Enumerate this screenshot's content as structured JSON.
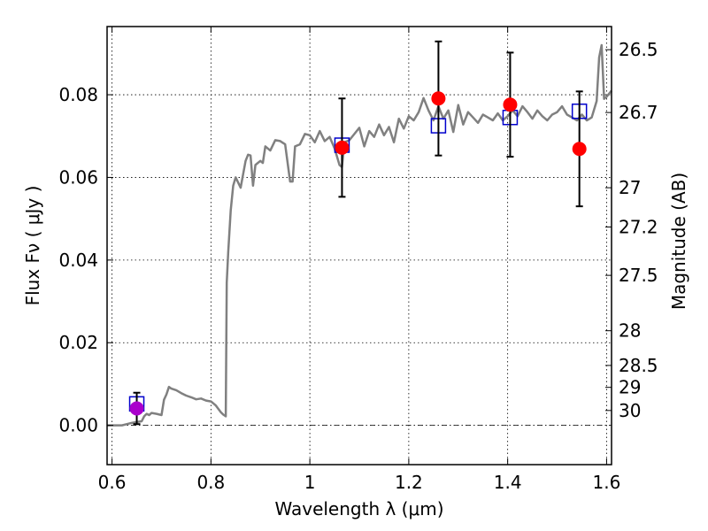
{
  "chart_data": {
    "type": "scatter",
    "xlabel": "Wavelength  λ (μm)",
    "ylabel_left": "Flux  Fν  ( μJy )",
    "ylabel_right": "Magnitude (AB)",
    "xlim": [
      0.59,
      1.61
    ],
    "ylim": [
      -0.0095,
      0.0965
    ],
    "x_ticks": [
      {
        "value": 0.6,
        "label": "0.6"
      },
      {
        "value": 0.8,
        "label": "0.8"
      },
      {
        "value": 1.0,
        "label": "1"
      },
      {
        "value": 1.2,
        "label": "1.2"
      },
      {
        "value": 1.4,
        "label": "1.4"
      },
      {
        "value": 1.6,
        "label": "1.6"
      }
    ],
    "y_ticks": [
      {
        "value": 0.0,
        "label": "0.00"
      },
      {
        "value": 0.02,
        "label": "0.02"
      },
      {
        "value": 0.04,
        "label": "0.04"
      },
      {
        "value": 0.06,
        "label": "0.06"
      },
      {
        "value": 0.08,
        "label": "0.08"
      }
    ],
    "magnitude_ticks": [
      {
        "flux": 0.0909,
        "label": "26.5"
      },
      {
        "flux": 0.0757,
        "label": "26.7"
      },
      {
        "flux": 0.0575,
        "label": "27"
      },
      {
        "flux": 0.048,
        "label": "27.2"
      },
      {
        "flux": 0.0363,
        "label": "27.5"
      },
      {
        "flux": 0.0229,
        "label": "28"
      },
      {
        "flux": 0.0145,
        "label": "28.5"
      },
      {
        "flux": 0.0092,
        "label": "29"
      },
      {
        "flux": 0.0036,
        "label": "30"
      }
    ],
    "grid": true,
    "zero_line": true,
    "series": [
      {
        "kind": "line",
        "color": "#808080",
        "x": [
          0.59,
          0.62,
          0.63,
          0.64,
          0.65,
          0.66,
          0.665,
          0.67,
          0.675,
          0.68,
          0.69,
          0.7,
          0.705,
          0.71,
          0.715,
          0.72,
          0.73,
          0.74,
          0.75,
          0.76,
          0.77,
          0.78,
          0.79,
          0.8,
          0.81,
          0.82,
          0.825,
          0.83,
          0.832,
          0.835,
          0.84,
          0.845,
          0.85,
          0.86,
          0.87,
          0.875,
          0.88,
          0.885,
          0.89,
          0.9,
          0.905,
          0.91,
          0.92,
          0.93,
          0.94,
          0.95,
          0.96,
          0.965,
          0.97,
          0.98,
          0.99,
          1.0,
          1.01,
          1.02,
          1.03,
          1.04,
          1.05,
          1.06,
          1.065,
          1.07,
          1.08,
          1.09,
          1.1,
          1.11,
          1.12,
          1.13,
          1.14,
          1.15,
          1.16,
          1.17,
          1.18,
          1.19,
          1.2,
          1.21,
          1.22,
          1.23,
          1.24,
          1.25,
          1.26,
          1.27,
          1.28,
          1.29,
          1.3,
          1.31,
          1.32,
          1.33,
          1.34,
          1.35,
          1.36,
          1.37,
          1.38,
          1.39,
          1.4,
          1.41,
          1.42,
          1.43,
          1.44,
          1.45,
          1.46,
          1.47,
          1.48,
          1.49,
          1.5,
          1.51,
          1.52,
          1.53,
          1.54,
          1.55,
          1.56,
          1.57,
          1.58,
          1.585,
          1.59,
          1.595,
          1.6,
          1.61
        ],
        "y": [
          0.0,
          0.0,
          0.0003,
          0.0006,
          0.0008,
          0.001,
          0.0022,
          0.0028,
          0.0025,
          0.003,
          0.0028,
          0.0025,
          0.0062,
          0.0075,
          0.0093,
          0.0089,
          0.0085,
          0.0078,
          0.0072,
          0.0068,
          0.0063,
          0.0065,
          0.006,
          0.0058,
          0.0048,
          0.0032,
          0.0026,
          0.0022,
          0.0345,
          0.042,
          0.052,
          0.058,
          0.06,
          0.0575,
          0.064,
          0.0655,
          0.0653,
          0.058,
          0.063,
          0.064,
          0.0635,
          0.0675,
          0.0665,
          0.069,
          0.0688,
          0.068,
          0.059,
          0.059,
          0.0675,
          0.068,
          0.0705,
          0.0702,
          0.0685,
          0.0712,
          0.0688,
          0.0698,
          0.067,
          0.063,
          0.0625,
          0.0685,
          0.069,
          0.0705,
          0.072,
          0.0675,
          0.0712,
          0.0698,
          0.0728,
          0.0702,
          0.0722,
          0.0685,
          0.0742,
          0.0718,
          0.0748,
          0.0738,
          0.0758,
          0.0792,
          0.0762,
          0.0738,
          0.0772,
          0.0742,
          0.0762,
          0.071,
          0.0775,
          0.0728,
          0.0758,
          0.0745,
          0.0732,
          0.0752,
          0.0745,
          0.0738,
          0.0755,
          0.0738,
          0.0748,
          0.0762,
          0.0748,
          0.0772,
          0.0758,
          0.0742,
          0.0762,
          0.0748,
          0.0738,
          0.0752,
          0.0758,
          0.0772,
          0.0752,
          0.0745,
          0.0738,
          0.0752,
          0.0738,
          0.0745,
          0.0785,
          0.089,
          0.092,
          0.079,
          0.0795,
          0.081
        ]
      },
      {
        "kind": "observed",
        "color": "#ff0000",
        "x": [
          0.65,
          1.065,
          1.26,
          1.405,
          1.545
        ],
        "y": [
          0.0041,
          0.0672,
          0.0791,
          0.0776,
          0.0669
        ],
        "yerr": [
          0.0038,
          0.0119,
          0.0138,
          0.0126,
          0.0139
        ]
      },
      {
        "kind": "model-photometry",
        "color": "#0000cc",
        "x": [
          0.65,
          1.065,
          1.26,
          1.405,
          1.545
        ],
        "y": [
          0.0052,
          0.0678,
          0.0725,
          0.0745,
          0.076
        ]
      }
    ]
  }
}
